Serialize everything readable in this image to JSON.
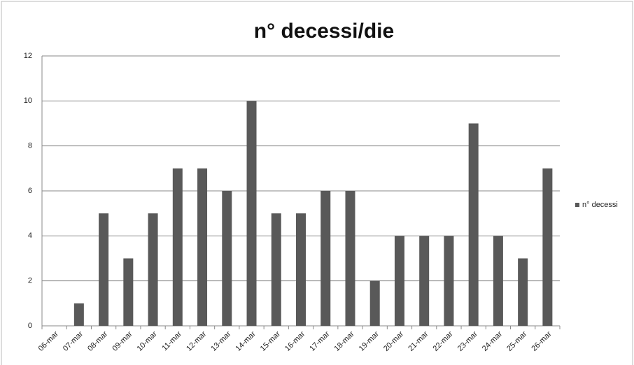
{
  "chart_data": {
    "type": "bar",
    "title": "n° decessi/die",
    "categories": [
      "06-mar",
      "07-mar",
      "08-mar",
      "09-mar",
      "10-mar",
      "11-mar",
      "12-mar",
      "13-mar",
      "14-mar",
      "15-mar",
      "16-mar",
      "17-mar",
      "18-mar",
      "19-mar",
      "20-mar",
      "21-mar",
      "22-mar",
      "23-mar",
      "24-mar",
      "25-mar",
      "26-mar"
    ],
    "series": [
      {
        "name": "n° decessi",
        "color": "#595959",
        "values": [
          0,
          1,
          5,
          3,
          5,
          7,
          7,
          6,
          10,
          5,
          5,
          6,
          6,
          2,
          4,
          4,
          4,
          9,
          4,
          3,
          7
        ]
      }
    ],
    "ylim": [
      0,
      12
    ],
    "yticks": [
      0,
      2,
      4,
      6,
      8,
      10,
      12
    ],
    "grid": true,
    "legend": "right"
  }
}
